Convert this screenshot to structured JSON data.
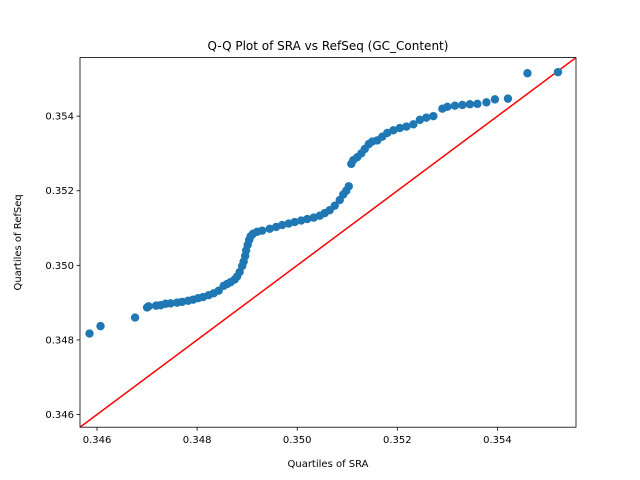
{
  "chart_data": {
    "type": "scatter",
    "title": "Q-Q Plot of SRA vs RefSeq (GC_Content)",
    "xlabel": "Quartiles of SRA",
    "ylabel": "Quartiles of RefSeq",
    "xlim": [
      0.34566,
      0.35557
    ],
    "ylim": [
      0.34566,
      0.35557
    ],
    "xticks": [
      0.346,
      0.348,
      0.35,
      0.352,
      0.354
    ],
    "yticks": [
      0.346,
      0.348,
      0.35,
      0.352,
      0.354
    ],
    "tick_labels": [
      "0.346",
      "0.348",
      "0.350",
      "0.352",
      "0.354"
    ],
    "grid": false,
    "point_color": "#1f77b4",
    "line_color": "#ff0000",
    "reference_line": "y = x",
    "points": [
      [
        0.34585,
        0.34817
      ],
      [
        0.34607,
        0.34837
      ],
      [
        0.34676,
        0.3486
      ],
      [
        0.347,
        0.34887
      ],
      [
        0.34703,
        0.3489
      ],
      [
        0.34718,
        0.34892
      ],
      [
        0.34727,
        0.34893
      ],
      [
        0.34737,
        0.34897
      ],
      [
        0.34747,
        0.34898
      ],
      [
        0.3476,
        0.349
      ],
      [
        0.3477,
        0.34902
      ],
      [
        0.34782,
        0.34905
      ],
      [
        0.34792,
        0.34908
      ],
      [
        0.34802,
        0.34912
      ],
      [
        0.34812,
        0.34915
      ],
      [
        0.34823,
        0.3492
      ],
      [
        0.34833,
        0.34925
      ],
      [
        0.34843,
        0.34932
      ],
      [
        0.34853,
        0.34945
      ],
      [
        0.3486,
        0.3495
      ],
      [
        0.34867,
        0.34955
      ],
      [
        0.34875,
        0.34962
      ],
      [
        0.3488,
        0.3497
      ],
      [
        0.34885,
        0.34982
      ],
      [
        0.3489,
        0.34998
      ],
      [
        0.34893,
        0.3501
      ],
      [
        0.34896,
        0.35025
      ],
      [
        0.34898,
        0.3504
      ],
      [
        0.34901,
        0.35055
      ],
      [
        0.34904,
        0.35068
      ],
      [
        0.34907,
        0.35078
      ],
      [
        0.34912,
        0.35085
      ],
      [
        0.3492,
        0.3509
      ],
      [
        0.3493,
        0.35093
      ],
      [
        0.34945,
        0.35098
      ],
      [
        0.34958,
        0.35103
      ],
      [
        0.3497,
        0.35108
      ],
      [
        0.34983,
        0.35112
      ],
      [
        0.34995,
        0.35116
      ],
      [
        0.35008,
        0.3512
      ],
      [
        0.3502,
        0.35124
      ],
      [
        0.35033,
        0.35128
      ],
      [
        0.35045,
        0.35133
      ],
      [
        0.35055,
        0.3514
      ],
      [
        0.35065,
        0.35148
      ],
      [
        0.35075,
        0.3516
      ],
      [
        0.35085,
        0.35175
      ],
      [
        0.35092,
        0.3519
      ],
      [
        0.35098,
        0.352
      ],
      [
        0.35103,
        0.35212
      ],
      [
        0.35108,
        0.35272
      ],
      [
        0.35112,
        0.35282
      ],
      [
        0.3512,
        0.3529
      ],
      [
        0.35128,
        0.353
      ],
      [
        0.35135,
        0.35312
      ],
      [
        0.35143,
        0.35325
      ],
      [
        0.3515,
        0.35332
      ],
      [
        0.3516,
        0.35335
      ],
      [
        0.3517,
        0.35345
      ],
      [
        0.3518,
        0.35355
      ],
      [
        0.35192,
        0.35362
      ],
      [
        0.35205,
        0.35368
      ],
      [
        0.35218,
        0.35372
      ],
      [
        0.35232,
        0.35378
      ],
      [
        0.35245,
        0.3539
      ],
      [
        0.35258,
        0.35396
      ],
      [
        0.35272,
        0.354
      ],
      [
        0.3529,
        0.3542
      ],
      [
        0.353,
        0.35425
      ],
      [
        0.35315,
        0.35428
      ],
      [
        0.3533,
        0.3543
      ],
      [
        0.35345,
        0.35432
      ],
      [
        0.3536,
        0.35433
      ],
      [
        0.35378,
        0.35437
      ],
      [
        0.35395,
        0.35445
      ],
      [
        0.35421,
        0.35447
      ],
      [
        0.3546,
        0.35515
      ],
      [
        0.35521,
        0.35518
      ]
    ]
  }
}
